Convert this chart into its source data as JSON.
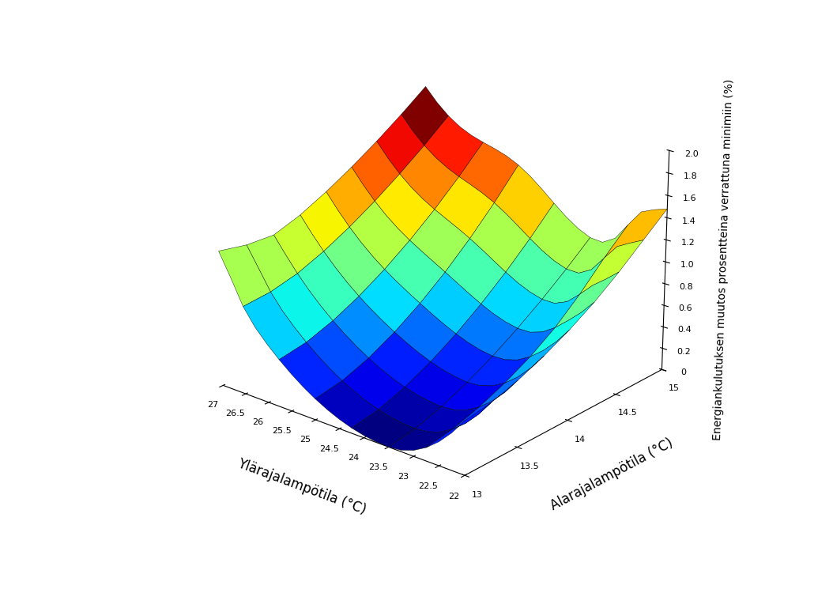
{
  "ylara_min": 22,
  "ylara_max": 27,
  "ylara_steps": 21,
  "alara_min": 13,
  "alara_max": 15,
  "alara_steps": 9,
  "zlabel": "Energiankulutuksen muutos prosentteina verrattuna minimiin (%)",
  "xlabel": "Ylärajalampötila (°C)",
  "ylabel_ax": "Alarajalampötila (°C)",
  "zlim": [
    0,
    2
  ],
  "background_color": "#ffffff",
  "cmap": "jet",
  "elev": 22,
  "azim": -50,
  "xticks": [
    22,
    22.5,
    23,
    23.5,
    24,
    24.5,
    25,
    25.5,
    26,
    26.5,
    27
  ],
  "yticks": [
    13,
    13.5,
    14,
    14.5,
    15
  ],
  "zticks": [
    0,
    0.2,
    0.4,
    0.6,
    0.8,
    1.0,
    1.2,
    1.4,
    1.6,
    1.8,
    2.0
  ]
}
